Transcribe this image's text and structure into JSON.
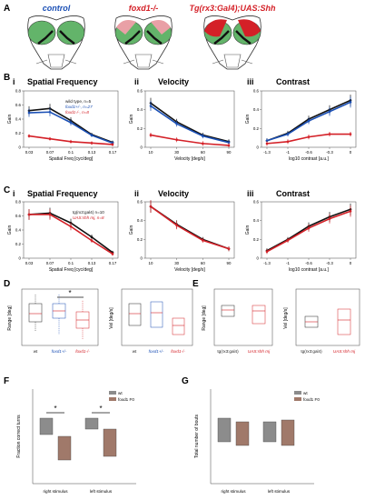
{
  "panel_letters": {
    "A": "A",
    "B": "B",
    "C": "C",
    "D": "D",
    "E": "E",
    "F": "F",
    "G": "G"
  },
  "panel_a": {
    "titles": [
      "control",
      "foxd1-/-",
      "Tg(rx3:Gal4);UAS:Shh"
    ],
    "title_colors": [
      "#1a4fb5",
      "#d42027",
      "#d42027"
    ]
  },
  "panel_b": {
    "sub_labels": [
      "i",
      "ii",
      "iii"
    ],
    "titles": [
      "Spatial Frequency",
      "Velocity",
      "Contrast"
    ],
    "legend": [
      "wild type, n=5",
      "foxd1+/-, n=27",
      "foxd1-/-, n=8"
    ],
    "ylabel": "Gain",
    "xlabels": [
      "Spatial Freq [cyc/deg]",
      "Velocity [deg/s]",
      "log10 contrast [a.u.]"
    ],
    "star": "*"
  },
  "panel_c": {
    "sub_labels": [
      "i",
      "ii",
      "iii"
    ],
    "titles": [
      "Spatial Frequency",
      "Velocity",
      "Contrast"
    ],
    "legend": [
      "tg(rx3:gal4) n=10",
      "UAS:shh mj, n=8"
    ],
    "ylabel": "Gain",
    "xlabels": [
      "Spatial Freq [cyc/deg]",
      "Velocity [deg/s]",
      "log10 contrast [a.u.]"
    ]
  },
  "panel_d": {
    "ylabels": [
      "Range [deg]",
      "Vel [deg/s]"
    ],
    "groups": [
      "wt",
      "foxd1+/-",
      "foxd1-/-"
    ],
    "group_colors": [
      "#222222",
      "#1a4fb5",
      "#d42027"
    ],
    "star": "*"
  },
  "panel_e": {
    "ylabels": [
      "Range [deg]",
      "Vel [deg/s]"
    ],
    "groups": [
      "tg(rx3:gal4)",
      "UAS:shh mj"
    ],
    "group_colors": [
      "#222222",
      "#d42027"
    ]
  },
  "panel_f": {
    "ylabel": "Fraction correct turns",
    "groups": [
      "right stimulus",
      "left stimulus"
    ],
    "legend": [
      "wt",
      "foxd1 F0"
    ],
    "star": "*"
  },
  "panel_g": {
    "ylabel": "Total number of bouts",
    "groups": [
      "right stimulus",
      "left stimulus"
    ],
    "legend": [
      "wt",
      "foxd1 F0"
    ]
  },
  "colors": {
    "black": "#111111",
    "blue": "#1a4fb5",
    "red": "#d42027",
    "gray_box": "#8c8c8c",
    "brown_box": "#a0796a",
    "green": "#63b46a",
    "pink": "#e9a0a6"
  },
  "chart_data": [
    {
      "type": "line",
      "panel": "B-i",
      "title": "Spatial Frequency",
      "xlabel": "Spatial Freq [cyc/deg]",
      "ylabel": "Gain",
      "x": [
        0.03,
        0.07,
        0.1,
        0.13,
        0.17
      ],
      "ylim": [
        0,
        0.8
      ],
      "yticks": [
        0,
        0.2,
        0.4,
        0.6,
        0.8
      ],
      "series": [
        {
          "name": "wild type, n=5",
          "color": "#111111",
          "values": [
            0.52,
            0.55,
            0.38,
            0.18,
            0.07
          ]
        },
        {
          "name": "foxd1+/-, n=27",
          "color": "#1a4fb5",
          "values": [
            0.49,
            0.5,
            0.35,
            0.17,
            0.06
          ]
        },
        {
          "name": "foxd1-/-, n=8",
          "color": "#d42027",
          "values": [
            0.16,
            0.12,
            0.08,
            0.06,
            0.04
          ]
        }
      ]
    },
    {
      "type": "line",
      "panel": "B-ii",
      "title": "Velocity",
      "xlabel": "Velocity [deg/s]",
      "ylabel": "Gain",
      "x": [
        10,
        30,
        60,
        90
      ],
      "ylim": [
        0,
        0.6
      ],
      "yticks": [
        0,
        0.2,
        0.4,
        0.6
      ],
      "series": [
        {
          "name": "wild type, n=5",
          "color": "#111111",
          "values": [
            0.47,
            0.27,
            0.13,
            0.06
          ]
        },
        {
          "name": "foxd1+/-, n=27",
          "color": "#1a4fb5",
          "values": [
            0.44,
            0.25,
            0.12,
            0.05
          ]
        },
        {
          "name": "foxd1-/-, n=8",
          "color": "#d42027",
          "values": [
            0.13,
            0.08,
            0.04,
            0.02
          ]
        }
      ]
    },
    {
      "type": "line",
      "panel": "B-iii",
      "title": "Contrast",
      "xlabel": "log10 contrast [a.u.]",
      "ylabel": "Gain",
      "x": [
        -1.3,
        -1,
        -0.6,
        -0.3,
        0
      ],
      "ylim": [
        0,
        0.6
      ],
      "yticks": [
        0,
        0.2,
        0.4,
        0.6
      ],
      "series": [
        {
          "name": "wild type, n=5",
          "color": "#111111",
          "values": [
            0.07,
            0.15,
            0.3,
            0.4,
            0.5
          ]
        },
        {
          "name": "foxd1+/-, n=27",
          "color": "#1a4fb5",
          "values": [
            0.07,
            0.14,
            0.28,
            0.38,
            0.48
          ]
        },
        {
          "name": "foxd1-/-, n=8",
          "color": "#d42027",
          "values": [
            0.04,
            0.06,
            0.11,
            0.14,
            0.14
          ]
        }
      ]
    },
    {
      "type": "line",
      "panel": "C-i",
      "title": "Spatial Frequency",
      "xlabel": "Spatial Freq [cyc/deg]",
      "ylabel": "Gain",
      "x": [
        0.03,
        0.07,
        0.1,
        0.13,
        0.17
      ],
      "ylim": [
        0,
        0.8
      ],
      "yticks": [
        0,
        0.2,
        0.4,
        0.6,
        0.8
      ],
      "series": [
        {
          "name": "tg(rx3:gal4) n=10",
          "color": "#111111",
          "values": [
            0.62,
            0.64,
            0.5,
            0.3,
            0.08
          ]
        },
        {
          "name": "UAS:shh mj, n=8",
          "color": "#d42027",
          "values": [
            0.62,
            0.62,
            0.45,
            0.25,
            0.06
          ]
        }
      ]
    },
    {
      "type": "line",
      "panel": "C-ii",
      "title": "Velocity",
      "xlabel": "Velocity [deg/s]",
      "ylabel": "Gain",
      "x": [
        10,
        30,
        60,
        90
      ],
      "ylim": [
        0,
        0.6
      ],
      "yticks": [
        0,
        0.2,
        0.4,
        0.6
      ],
      "series": [
        {
          "name": "tg(rx3:gal4) n=10",
          "color": "#111111",
          "values": [
            0.55,
            0.36,
            0.2,
            0.1
          ]
        },
        {
          "name": "UAS:shh mj, n=8",
          "color": "#d42027",
          "values": [
            0.55,
            0.35,
            0.19,
            0.1
          ]
        }
      ]
    },
    {
      "type": "line",
      "panel": "C-iii",
      "title": "Contrast",
      "xlabel": "log10 contrast [a.u.]",
      "ylabel": "Gain",
      "x": [
        -1.3,
        -1,
        -0.6,
        -0.3,
        0
      ],
      "ylim": [
        0,
        0.6
      ],
      "yticks": [
        0,
        0.2,
        0.4,
        0.6
      ],
      "series": [
        {
          "name": "tg(rx3:gal4) n=10",
          "color": "#111111",
          "values": [
            0.08,
            0.2,
            0.34,
            0.44,
            0.52
          ]
        },
        {
          "name": "UAS:shh mj, n=8",
          "color": "#d42027",
          "values": [
            0.07,
            0.19,
            0.32,
            0.42,
            0.5
          ]
        }
      ]
    }
  ]
}
